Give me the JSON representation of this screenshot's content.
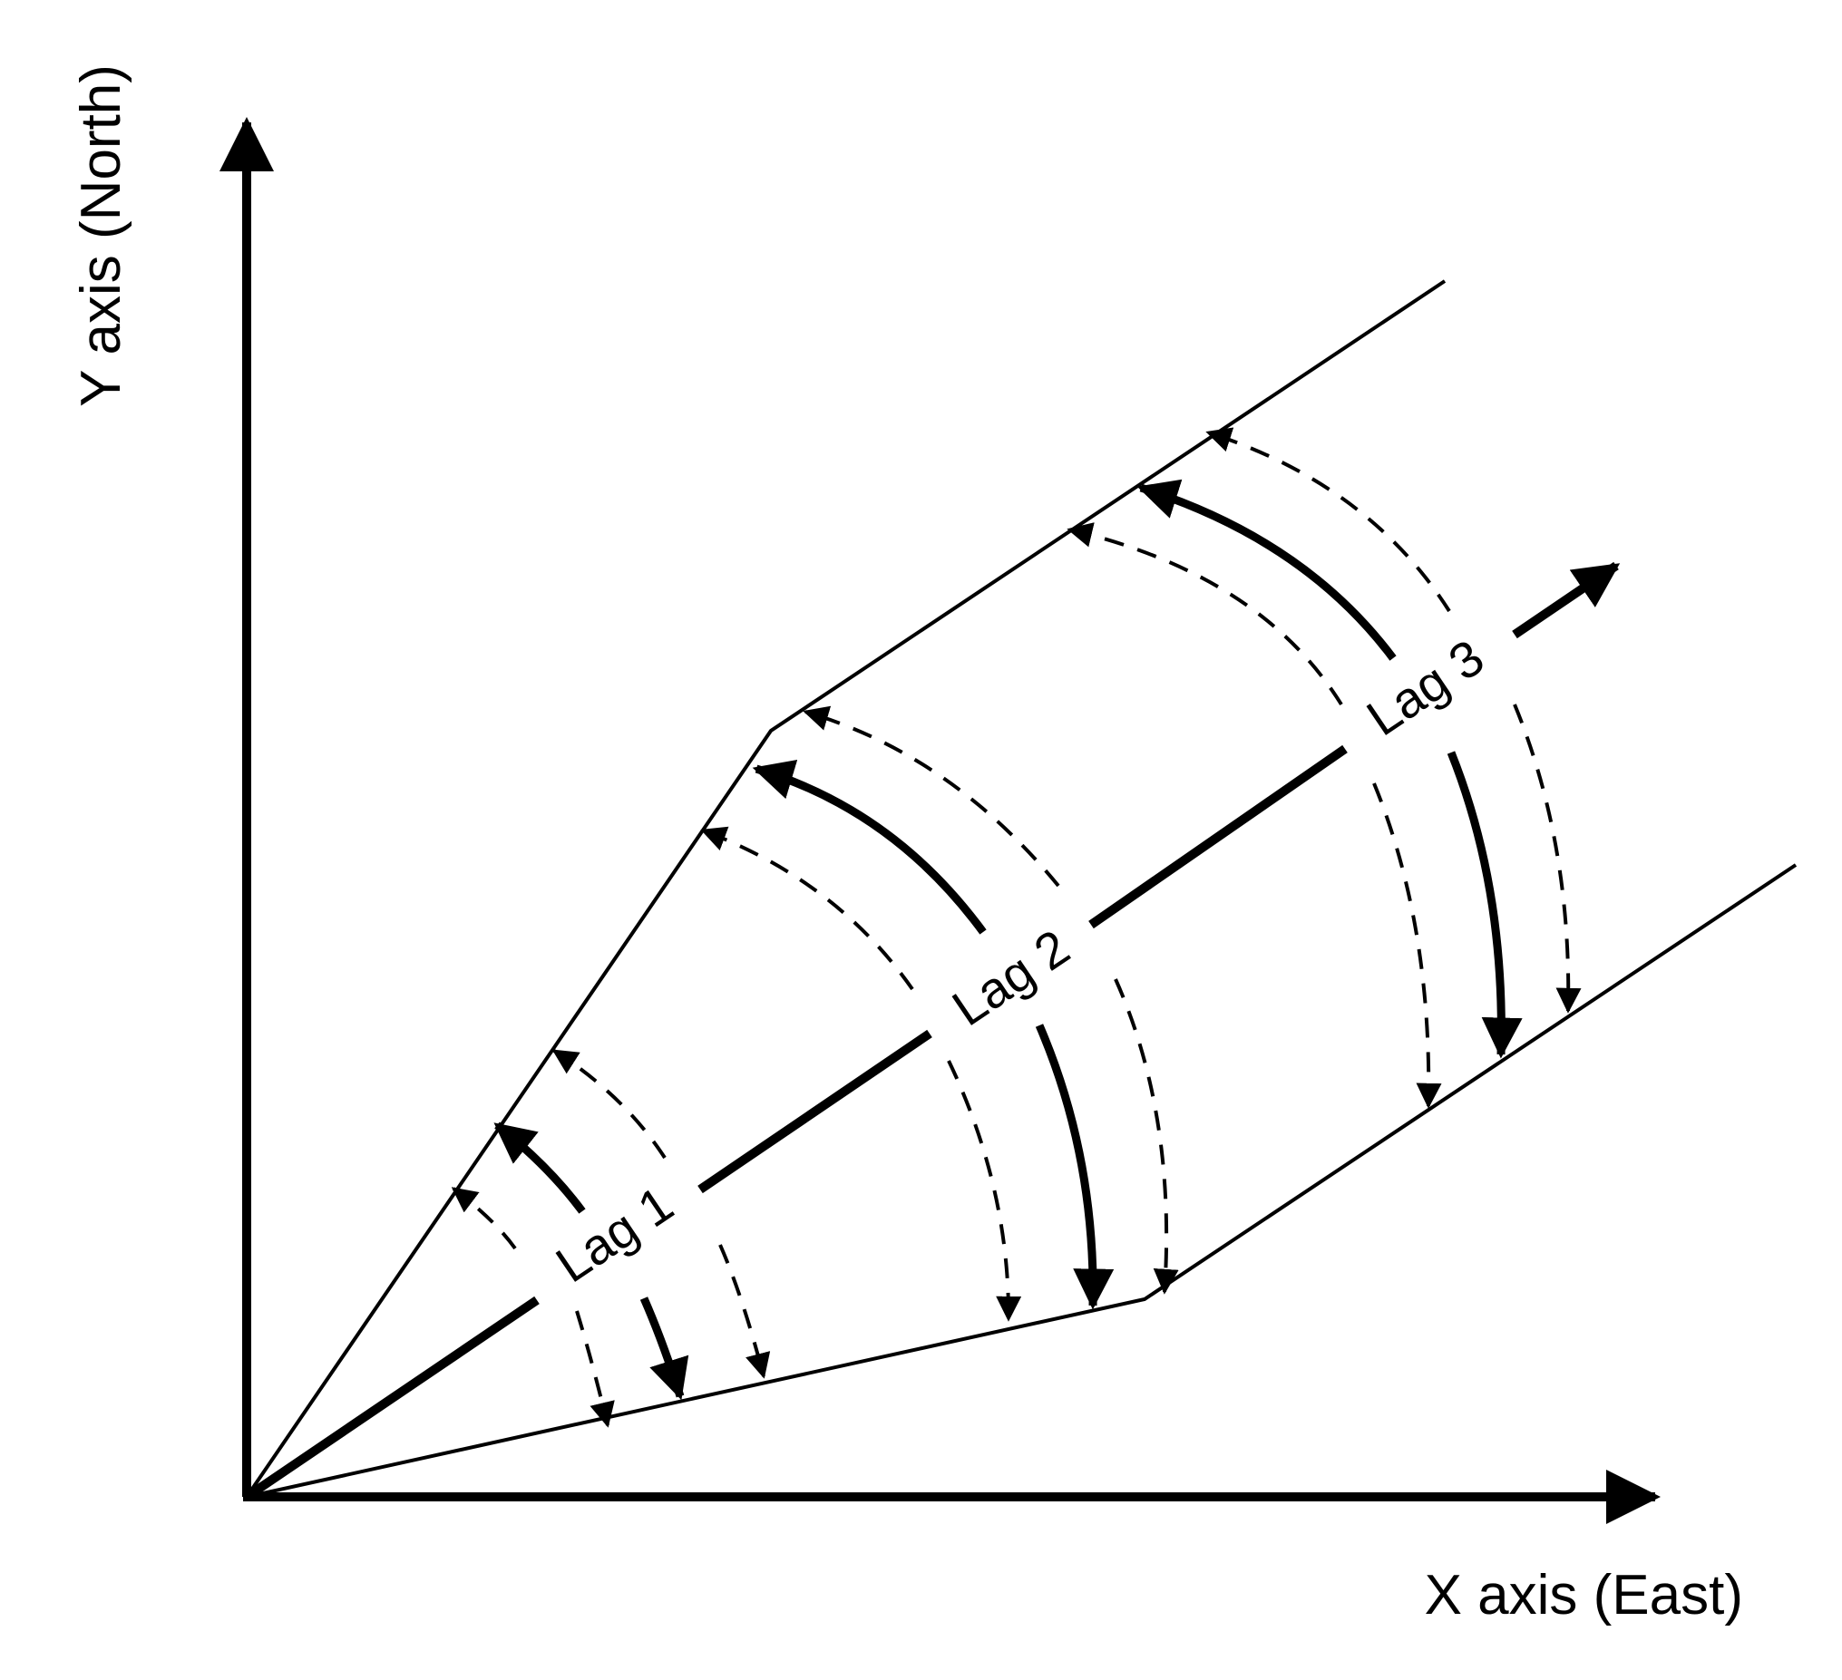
{
  "axes": {
    "x_label": "X axis (East)",
    "y_label": "Y axis (North)"
  },
  "lags": [
    {
      "label": "Lag 1"
    },
    {
      "label": "Lag 2"
    },
    {
      "label": "Lag 3"
    }
  ],
  "colors": {
    "ink": "#000000",
    "background": "#ffffff"
  }
}
